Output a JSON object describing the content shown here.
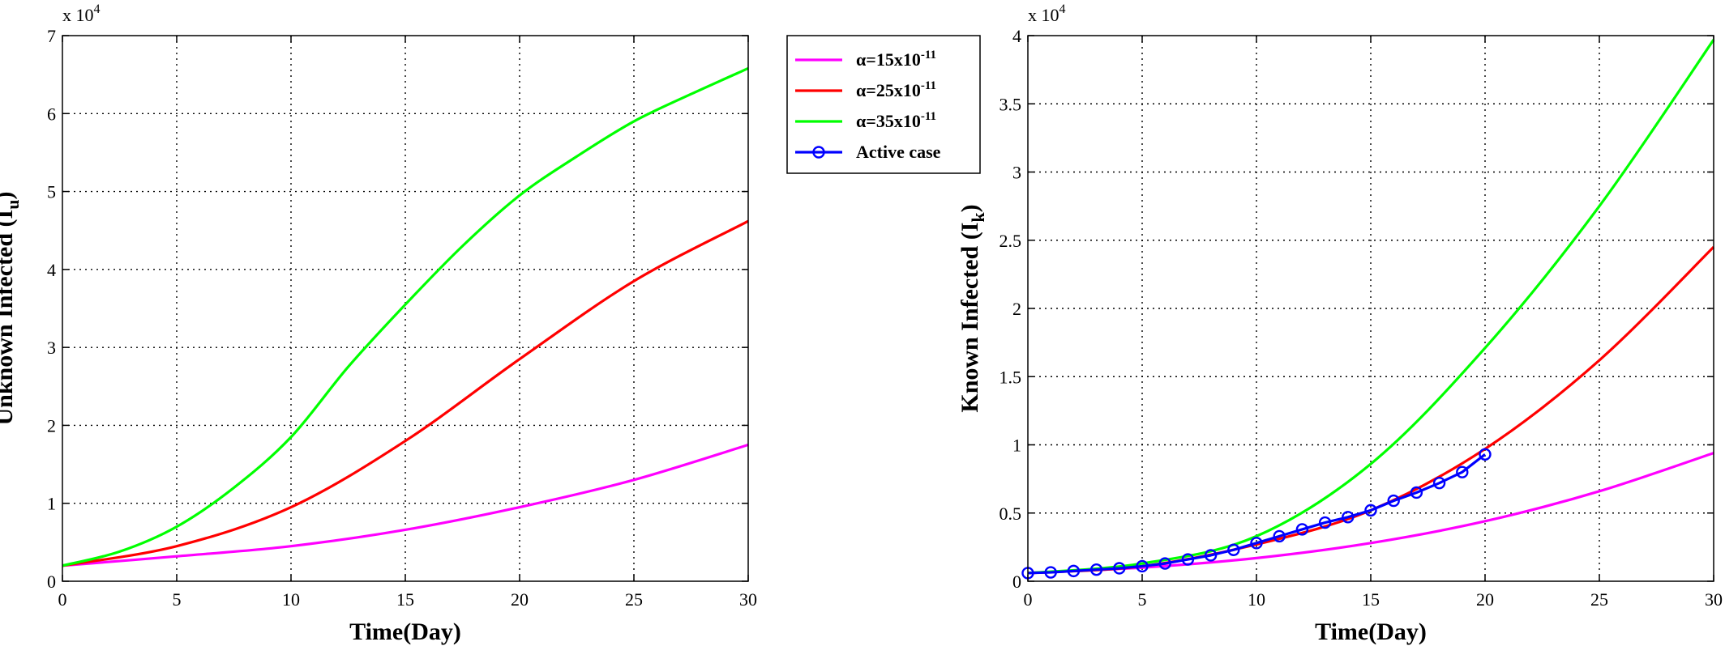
{
  "legend": [
    {
      "label": "α=15x10",
      "sup": "-11",
      "color": "#ff00ff",
      "marker": false
    },
    {
      "label": "α=25x10",
      "sup": "-11",
      "color": "#ff0000",
      "marker": false
    },
    {
      "label": "α=35x10",
      "sup": "-11",
      "color": "#00ff00",
      "marker": false
    },
    {
      "label": "Active case",
      "sup": "",
      "color": "#0000ff",
      "marker": true
    }
  ],
  "chart_data": [
    {
      "type": "line",
      "xlabel": "Time(Day)",
      "ylabel": "Unknown Infected (I",
      "ylabel_sub": "u",
      "ylabel_close": ")",
      "y_multiplier": "x 10",
      "y_multiplier_exp": "4",
      "xlim": [
        0,
        30
      ],
      "ylim": [
        0,
        7
      ],
      "xticks": [
        "0",
        "5",
        "10",
        "15",
        "20",
        "25",
        "30"
      ],
      "yticks": [
        "0",
        "1",
        "2",
        "3",
        "4",
        "5",
        "6",
        "7"
      ],
      "grid": true,
      "series": [
        {
          "name": "α=15x10-11",
          "color": "#ff00ff",
          "x": [
            0,
            5,
            10,
            15,
            20,
            25,
            30
          ],
          "y": [
            0.2,
            0.32,
            0.45,
            0.66,
            0.95,
            1.3,
            1.75
          ]
        },
        {
          "name": "α=25x10-11",
          "color": "#ff0000",
          "x": [
            0,
            5,
            10,
            15,
            20,
            25,
            30
          ],
          "y": [
            0.2,
            0.45,
            0.95,
            1.8,
            2.85,
            3.85,
            4.62
          ]
        },
        {
          "name": "α=35x10-11",
          "color": "#00ff00",
          "x": [
            0,
            2.5,
            5,
            7.5,
            10,
            12.5,
            15,
            17.5,
            20,
            22.5,
            25,
            27.5,
            30
          ],
          "y": [
            0.2,
            0.38,
            0.7,
            1.2,
            1.85,
            2.75,
            3.55,
            4.3,
            4.95,
            5.45,
            5.9,
            6.25,
            6.58
          ]
        }
      ]
    },
    {
      "type": "line",
      "xlabel": "Time(Day)",
      "ylabel": "Known Infected (I",
      "ylabel_sub": "k",
      "ylabel_close": ")",
      "y_multiplier": "x 10",
      "y_multiplier_exp": "4",
      "xlim": [
        0,
        30
      ],
      "ylim": [
        0,
        4
      ],
      "xticks": [
        "0",
        "5",
        "10",
        "15",
        "20",
        "25",
        "30"
      ],
      "yticks": [
        "0",
        "0.5",
        "1",
        "1.5",
        "2",
        "2.5",
        "3",
        "3.5",
        "4"
      ],
      "grid": true,
      "series": [
        {
          "name": "α=15x10-11",
          "color": "#ff00ff",
          "x": [
            0,
            5,
            10,
            15,
            20,
            25,
            30
          ],
          "y": [
            0.06,
            0.1,
            0.17,
            0.28,
            0.44,
            0.66,
            0.94
          ]
        },
        {
          "name": "α=25x10-11",
          "color": "#ff0000",
          "x": [
            0,
            5,
            10,
            15,
            20,
            25,
            30
          ],
          "y": [
            0.06,
            0.11,
            0.27,
            0.52,
            0.97,
            1.62,
            2.45
          ]
        },
        {
          "name": "α=35x10-11",
          "color": "#00ff00",
          "x": [
            0,
            5,
            10,
            15,
            20,
            25,
            30
          ],
          "y": [
            0.06,
            0.13,
            0.33,
            0.86,
            1.71,
            2.75,
            3.97
          ]
        },
        {
          "name": "Active case",
          "color": "#0000ff",
          "marker": "circle",
          "x": [
            0,
            1,
            2,
            3,
            4,
            5,
            6,
            7,
            8,
            9,
            10,
            11,
            12,
            13,
            14,
            15,
            16,
            17,
            18,
            19,
            20
          ],
          "y": [
            0.06,
            0.065,
            0.075,
            0.085,
            0.095,
            0.11,
            0.13,
            0.16,
            0.19,
            0.23,
            0.28,
            0.33,
            0.38,
            0.43,
            0.47,
            0.52,
            0.59,
            0.65,
            0.72,
            0.8,
            0.93
          ]
        }
      ]
    }
  ]
}
